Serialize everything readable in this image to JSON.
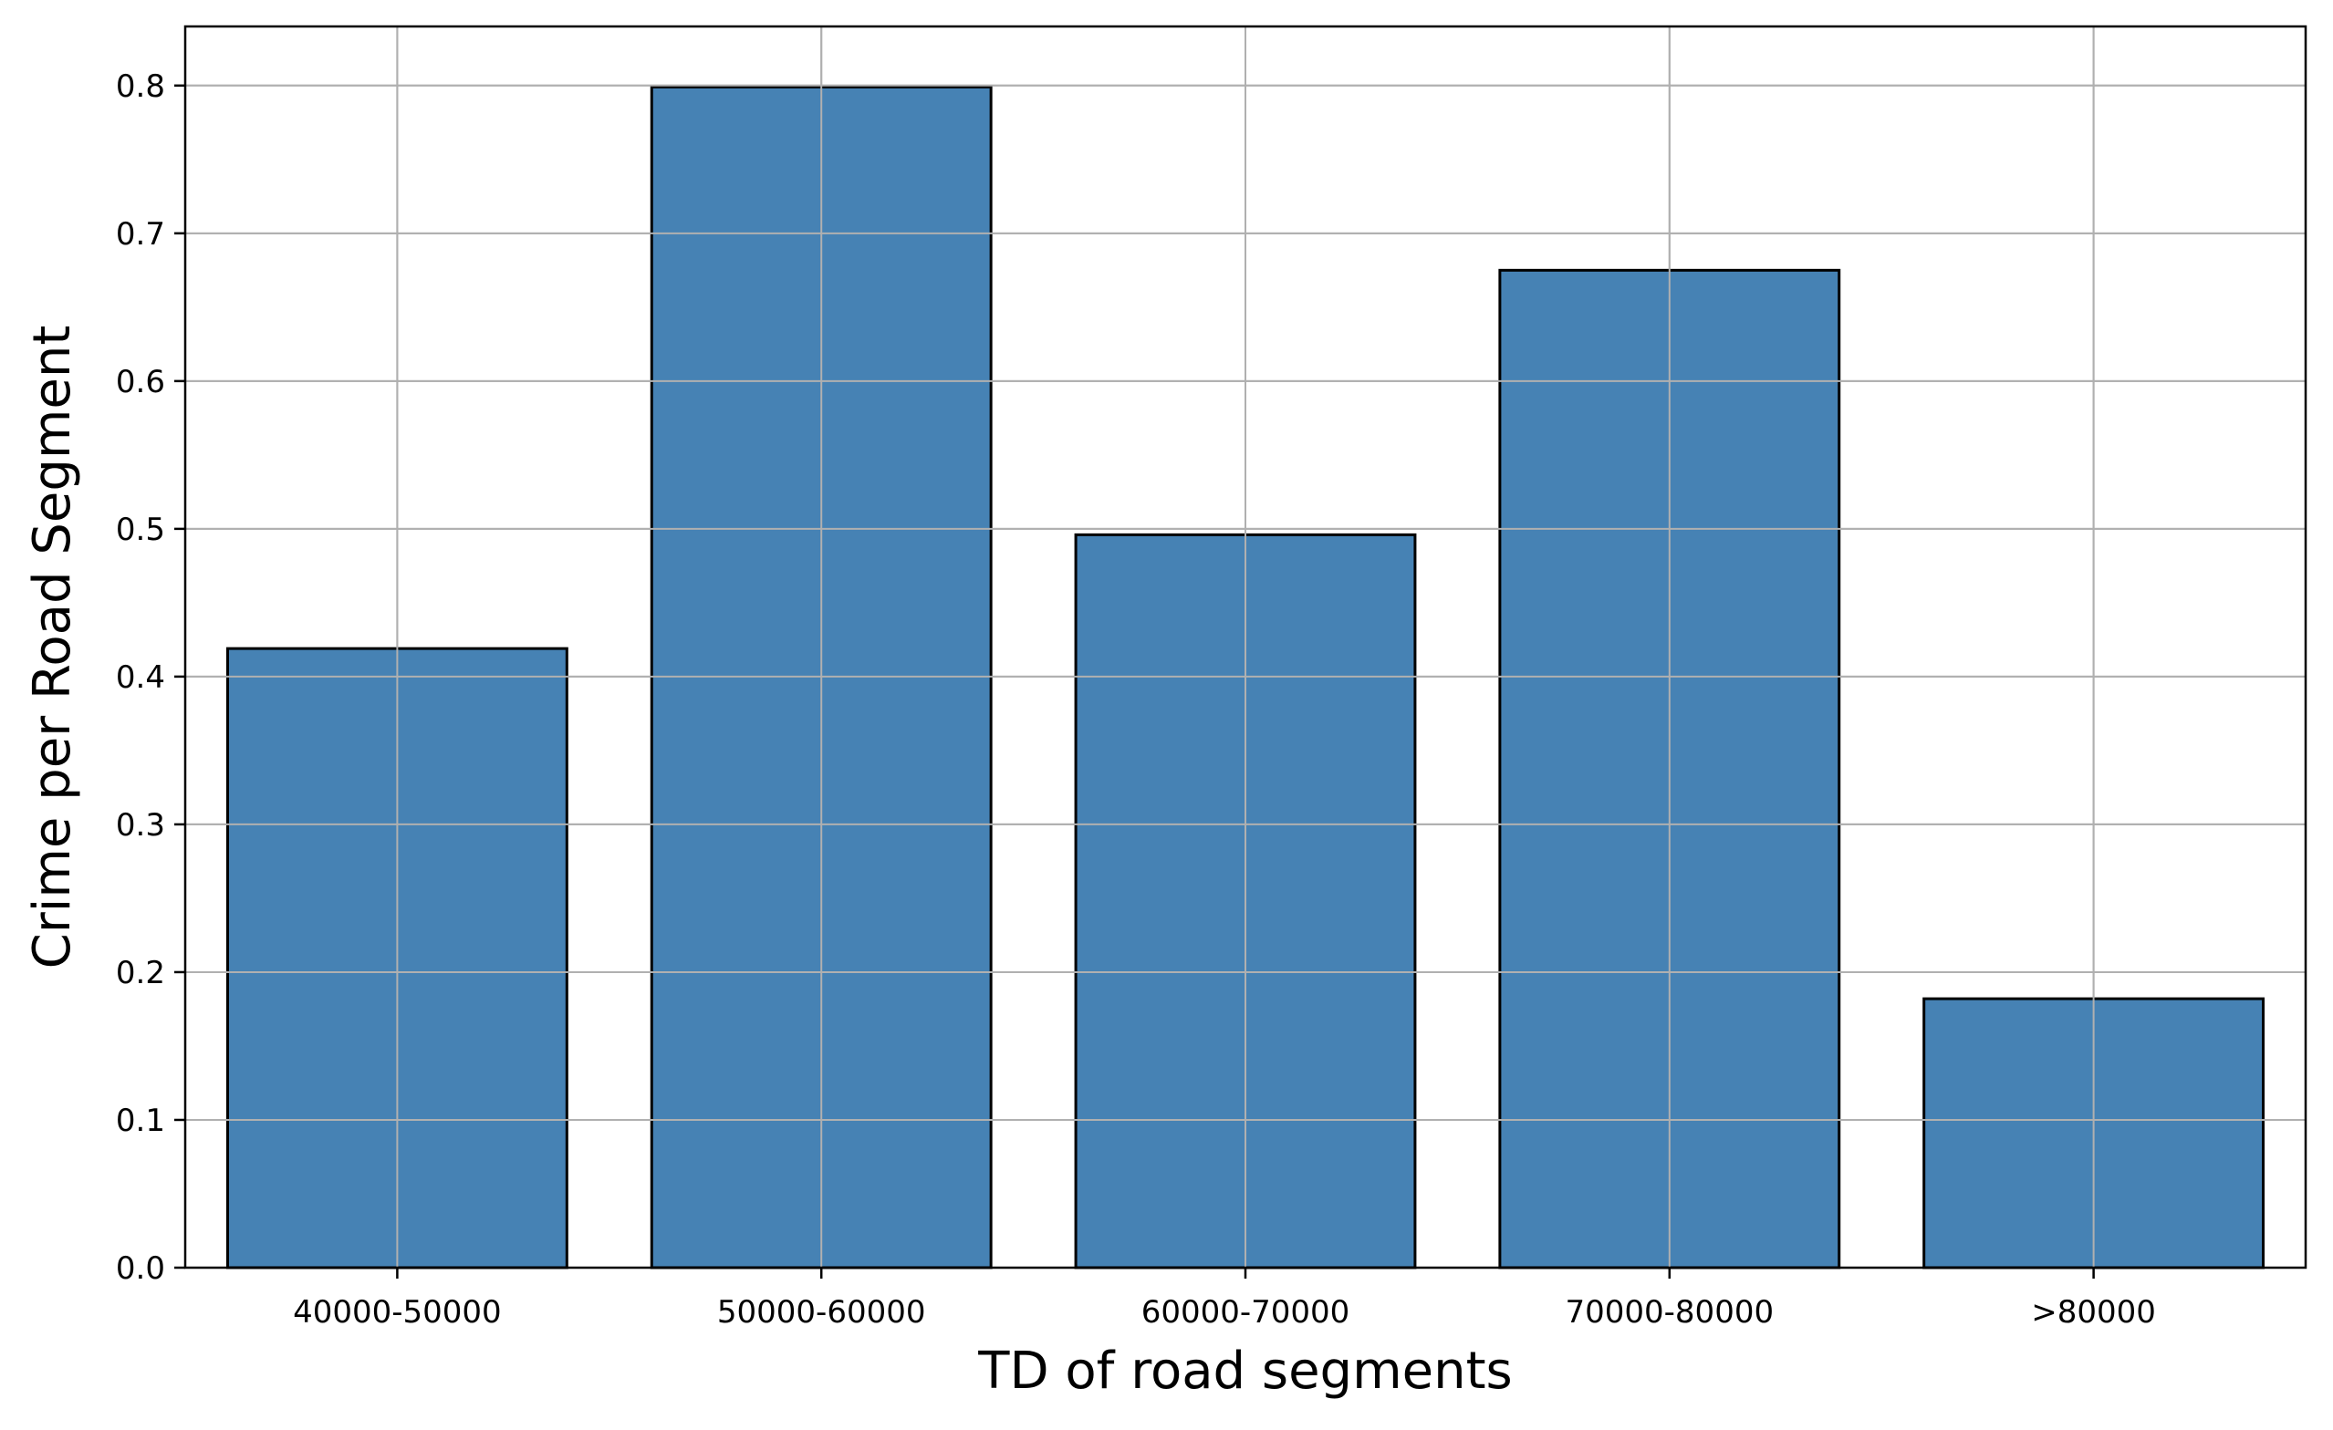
{
  "chart_data": {
    "type": "bar",
    "title": "",
    "xlabel": "TD of road segments",
    "ylabel": "Crime per Road Segment",
    "categories": [
      "40000-50000",
      "50000-60000",
      "60000-70000",
      "70000-80000",
      ">80000"
    ],
    "values": [
      0.419,
      0.799,
      0.496,
      0.675,
      0.182
    ],
    "ylim": [
      0,
      0.84
    ],
    "yticks": [
      "0.0",
      "0.1",
      "0.2",
      "0.3",
      "0.4",
      "0.5",
      "0.6",
      "0.7",
      "0.8"
    ],
    "grid": true,
    "legend": "none",
    "colors": {
      "bar_fill": "#4682b4",
      "bar_edge": "#000000",
      "grid": "#b0b0b0",
      "axes": "#000000"
    }
  }
}
